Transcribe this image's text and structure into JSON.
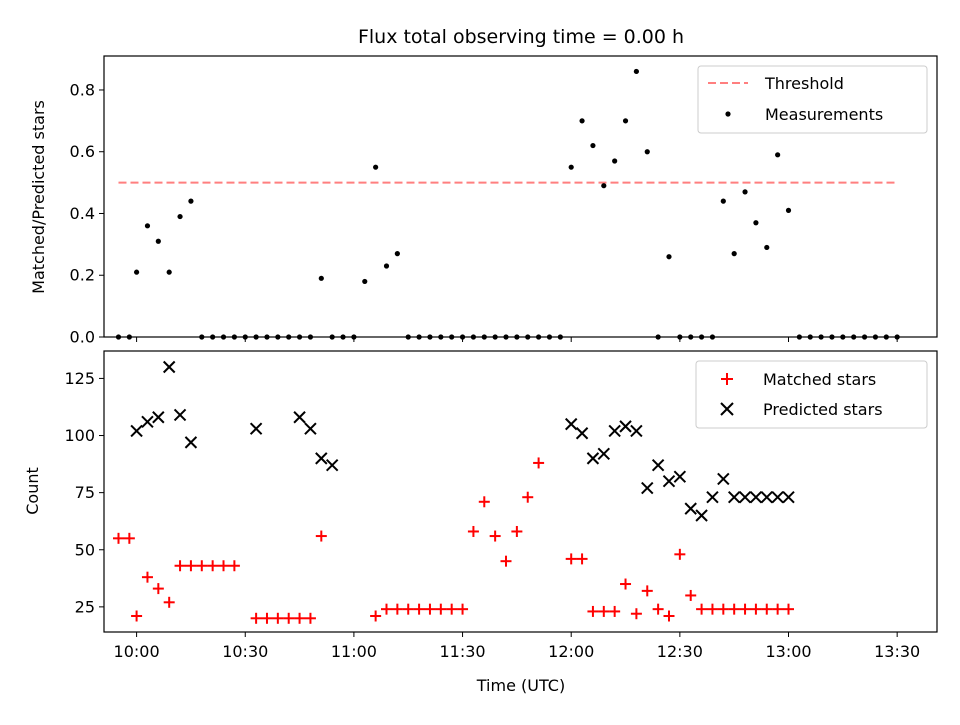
{
  "chart_data": [
    {
      "type": "scatter",
      "title": "Flux total observing time = 0.00 h",
      "xlabel": "",
      "ylabel": "Matched/Predicted stars",
      "xlim": [
        "09:51",
        "13:41"
      ],
      "ylim": [
        0,
        0.91
      ],
      "yticks": [
        0.0,
        0.2,
        0.4,
        0.6,
        0.8
      ],
      "ytick_labels": [
        "0.0",
        "0.2",
        "0.4",
        "0.6",
        "0.8"
      ],
      "legend": {
        "position": "upper right",
        "entries": [
          "Threshold",
          "Measurements"
        ]
      },
      "grid": false,
      "threshold": {
        "name": "Threshold",
        "value": 0.5,
        "x_from": "09:55",
        "x_to": "13:30",
        "style": "dashed",
        "color": "#ff7f7f"
      },
      "series": [
        {
          "name": "Measurements",
          "marker": "dot",
          "color": "#000000",
          "x": [
            "09:55",
            "09:58",
            "10:00",
            "10:03",
            "10:06",
            "10:09",
            "10:12",
            "10:15",
            "10:18",
            "10:21",
            "10:24",
            "10:27",
            "10:30",
            "10:33",
            "10:36",
            "10:39",
            "10:42",
            "10:45",
            "10:48",
            "10:51",
            "10:54",
            "10:57",
            "11:00",
            "11:03",
            "11:06",
            "11:09",
            "11:12",
            "11:15",
            "11:18",
            "11:21",
            "11:24",
            "11:27",
            "11:30",
            "11:33",
            "11:36",
            "11:39",
            "11:42",
            "11:45",
            "11:48",
            "11:51",
            "11:54",
            "11:57",
            "12:00",
            "12:03",
            "12:06",
            "12:09",
            "12:12",
            "12:15",
            "12:18",
            "12:21",
            "12:24",
            "12:27",
            "12:30",
            "12:33",
            "12:36",
            "12:39",
            "12:42",
            "12:45",
            "12:48",
            "12:51",
            "12:54",
            "12:57",
            "13:00",
            "13:03",
            "13:06",
            "13:09",
            "13:12",
            "13:15",
            "13:18",
            "13:21",
            "13:24",
            "13:27",
            "13:30"
          ],
          "y": [
            0.0,
            0.0,
            0.21,
            0.36,
            0.31,
            0.21,
            0.39,
            0.44,
            0.0,
            0.0,
            0.0,
            0.0,
            0.0,
            0.0,
            0.0,
            0.0,
            0.0,
            0.0,
            0.0,
            0.19,
            0.0,
            0.0,
            0.0,
            0.18,
            0.55,
            0.23,
            0.27,
            0.0,
            0.0,
            0.0,
            0.0,
            0.0,
            0.0,
            0.0,
            0.0,
            0.0,
            0.0,
            0.0,
            0.0,
            0.0,
            0.0,
            0.0,
            0.55,
            0.7,
            0.62,
            0.49,
            0.57,
            0.7,
            0.86,
            0.6,
            0.0,
            0.26,
            0.0,
            0.0,
            0.0,
            0.0,
            0.44,
            0.27,
            0.47,
            0.37,
            0.29,
            0.59,
            0.41,
            0.0,
            0.0,
            0.0,
            0.0,
            0.0,
            0.0,
            0.0,
            0.0,
            0.0,
            0.0
          ]
        }
      ]
    },
    {
      "type": "scatter",
      "title": "",
      "xlabel": "Time (UTC)",
      "ylabel": "Count",
      "xlim": [
        "09:51",
        "13:41"
      ],
      "ylim": [
        14,
        137
      ],
      "xticks": [
        "10:00",
        "10:30",
        "11:00",
        "11:30",
        "12:00",
        "12:30",
        "13:00",
        "13:30"
      ],
      "yticks": [
        25,
        50,
        75,
        100,
        125
      ],
      "legend": {
        "position": "upper right",
        "entries": [
          "Matched stars",
          "Predicted stars"
        ]
      },
      "grid": false,
      "series": [
        {
          "name": "Matched stars",
          "marker": "plus",
          "color": "#ff0000",
          "x": [
            "09:55",
            "09:58",
            "10:00",
            "10:03",
            "10:06",
            "10:09",
            "10:12",
            "10:15",
            "10:18",
            "10:21",
            "10:24",
            "10:27",
            "10:33",
            "10:36",
            "10:39",
            "10:42",
            "10:45",
            "10:48",
            "10:51",
            "11:06",
            "11:09",
            "11:12",
            "11:15",
            "11:18",
            "11:21",
            "11:24",
            "11:27",
            "11:30",
            "11:33",
            "11:36",
            "11:39",
            "11:42",
            "11:45",
            "11:48",
            "11:51",
            "12:00",
            "12:03",
            "12:06",
            "12:09",
            "12:12",
            "12:15",
            "12:18",
            "12:21",
            "12:24",
            "12:27",
            "12:30",
            "12:33",
            "12:36",
            "12:39",
            "12:42",
            "12:45",
            "12:48",
            "12:51",
            "12:54",
            "12:57",
            "13:00"
          ],
          "y": [
            55,
            55,
            21,
            38,
            33,
            27,
            43,
            43,
            43,
            43,
            43,
            43,
            20,
            20,
            20,
            20,
            20,
            20,
            56,
            21,
            24,
            24,
            24,
            24,
            24,
            24,
            24,
            24,
            58,
            71,
            56,
            45,
            58,
            73,
            88,
            46,
            46,
            23,
            23,
            23,
            35,
            22,
            32,
            24,
            21,
            48,
            30,
            24,
            24,
            24,
            24,
            24,
            24,
            24,
            24,
            24
          ]
        },
        {
          "name": "Predicted stars",
          "marker": "x",
          "color": "#000000",
          "x": [
            "10:00",
            "10:03",
            "10:06",
            "10:09",
            "10:12",
            "10:15",
            "10:33",
            "10:45",
            "10:48",
            "10:51",
            "10:54",
            "12:00",
            "12:03",
            "12:06",
            "12:09",
            "12:12",
            "12:15",
            "12:18",
            "12:21",
            "12:24",
            "12:27",
            "12:30",
            "12:33",
            "12:36",
            "12:39",
            "12:42",
            "12:45",
            "12:48",
            "12:51",
            "12:54",
            "12:57",
            "13:00"
          ],
          "y": [
            102,
            106,
            108,
            130,
            109,
            97,
            103,
            108,
            103,
            90,
            87,
            105,
            101,
            90,
            92,
            102,
            104,
            102,
            77,
            87,
            80,
            82,
            68,
            65,
            73,
            81,
            73,
            73,
            73,
            73,
            73,
            73
          ]
        }
      ]
    }
  ]
}
